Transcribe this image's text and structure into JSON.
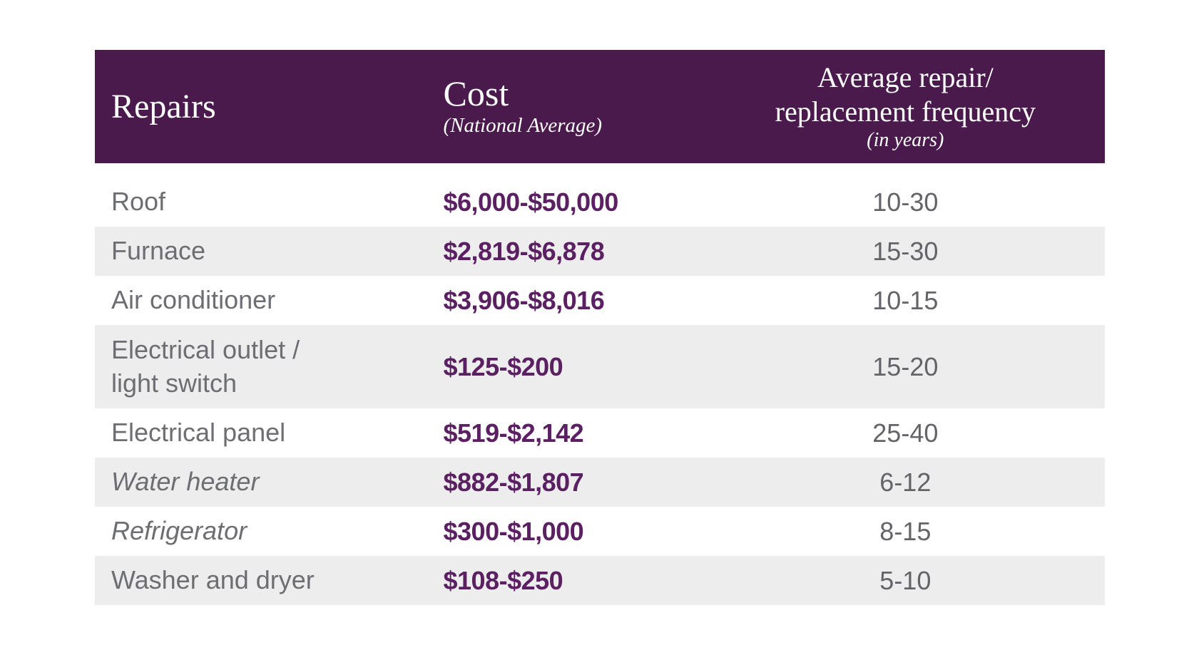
{
  "colors": {
    "header_background": "#4A1A4D",
    "cost_text": "#5B2062",
    "alternate_row_background": "#EDEDEE",
    "repair_label_text": "#6D6E71",
    "frequency_text": "#636467",
    "page_background": "#FFFFFF",
    "header_text": "#FFFFFF"
  },
  "table": {
    "header": {
      "repairs": "Repairs",
      "cost_title": "Cost",
      "cost_subtitle": "(National Average)",
      "freq_line1": "Average repair/",
      "freq_line2": "replacement frequency",
      "freq_subtitle": "(in years)"
    },
    "rows": [
      {
        "repair": "Roof",
        "cost": "$6,000-$50,000",
        "frequency": "10-30"
      },
      {
        "repair": "Furnace",
        "cost": "$2,819-$6,878",
        "frequency": "15-30"
      },
      {
        "repair": "Air conditioner",
        "cost": "$3,906-$8,016",
        "frequency": "10-15"
      },
      {
        "repair": "Electrical outlet /\nlight switch",
        "cost": "$125-$200",
        "frequency": "15-20"
      },
      {
        "repair": "Electrical panel",
        "cost": "$519-$2,142",
        "frequency": "25-40"
      },
      {
        "repair": "Water heater",
        "cost": "$882-$1,807",
        "frequency": "6-12"
      },
      {
        "repair": "Refrigerator",
        "cost": "$300-$1,000",
        "frequency": "8-15"
      },
      {
        "repair": "Washer and dryer",
        "cost": "$108-$250",
        "frequency": "5-10"
      }
    ]
  },
  "chart_data": {
    "type": "table",
    "title": "",
    "columns": [
      "Repairs",
      "Cost (National Average)",
      "Average repair/replacement frequency (in years)"
    ],
    "rows": [
      [
        "Roof",
        "$6,000-$50,000",
        "10-30"
      ],
      [
        "Furnace",
        "$2,819-$6,878",
        "15-30"
      ],
      [
        "Air conditioner",
        "$3,906-$8,016",
        "10-15"
      ],
      [
        "Electrical outlet / light switch",
        "$125-$200",
        "15-20"
      ],
      [
        "Electrical panel",
        "$519-$2,142",
        "25-40"
      ],
      [
        "Water heater",
        "$882-$1,807",
        "6-12"
      ],
      [
        "Refrigerator",
        "$300-$1,000",
        "8-15"
      ],
      [
        "Washer and dryer",
        "$108-$250",
        "5-10"
      ]
    ],
    "layout": {
      "alternating_row_shading": true,
      "header_style": "dark-purple",
      "grid": false
    }
  }
}
